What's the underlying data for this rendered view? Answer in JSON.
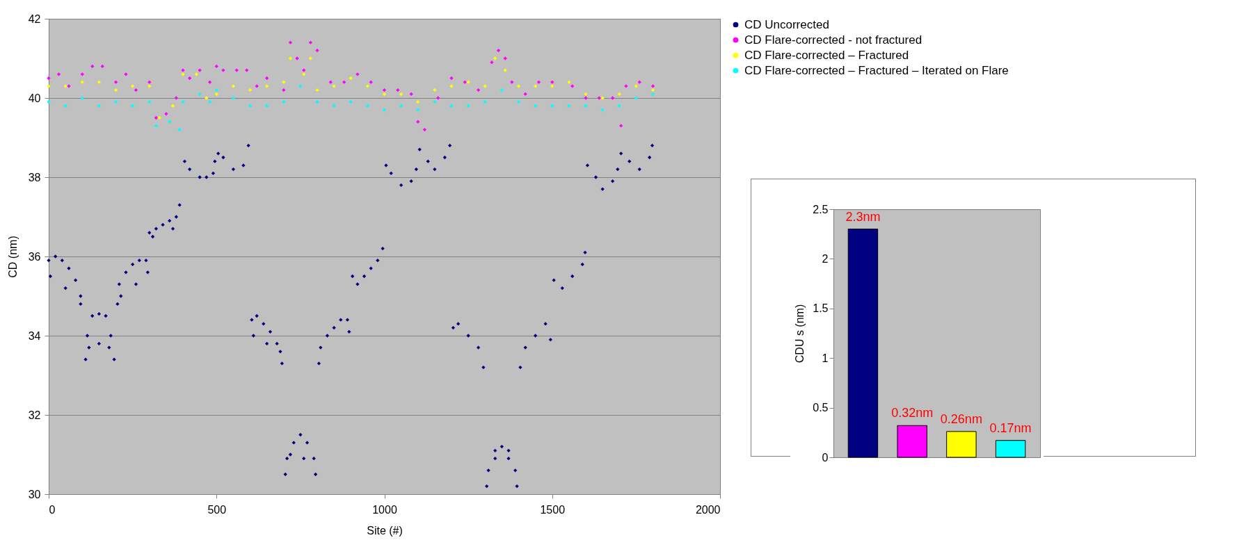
{
  "chart_data": [
    {
      "type": "scatter",
      "xlabel": "Site (#)",
      "ylabel": "CD (nm)",
      "xlim": [
        0,
        2000
      ],
      "xticks": [
        0,
        500,
        1000,
        1500,
        2000
      ],
      "ylim": [
        30,
        42
      ],
      "yticks": [
        30,
        32,
        34,
        36,
        38,
        40,
        42
      ],
      "grid": "y",
      "legend": "top right",
      "marker": "diamond",
      "series": [
        {
          "name": "CD Uncorrected",
          "color": "#000080",
          "x": [
            0,
            20,
            40,
            60,
            80,
            95,
            5,
            50,
            95,
            110,
            115,
            130,
            150,
            170,
            185,
            195,
            120,
            150,
            180,
            205,
            210,
            230,
            250,
            270,
            290,
            295,
            215,
            260,
            300,
            320,
            340,
            360,
            380,
            390,
            310,
            370,
            405,
            420,
            450,
            470,
            490,
            495,
            505,
            520,
            550,
            580,
            595,
            605,
            620,
            640,
            660,
            680,
            695,
            610,
            650,
            690,
            705,
            710,
            730,
            750,
            770,
            790,
            795,
            720,
            760,
            805,
            810,
            830,
            850,
            870,
            890,
            895,
            905,
            920,
            940,
            960,
            980,
            995,
            1005,
            1020,
            1050,
            1080,
            1095,
            1105,
            1130,
            1150,
            1180,
            1195,
            1205,
            1220,
            1250,
            1280,
            1295,
            1305,
            1310,
            1330,
            1350,
            1370,
            1390,
            1395,
            1330,
            1370,
            1405,
            1420,
            1450,
            1480,
            1495,
            1505,
            1530,
            1560,
            1590,
            1598,
            1605,
            1630,
            1650,
            1680,
            1695,
            1705,
            1730,
            1760,
            1790,
            1798
          ],
          "values": [
            35.9,
            36.0,
            35.9,
            35.7,
            35.4,
            35.0,
            35.5,
            35.2,
            34.8,
            33.4,
            34.0,
            34.5,
            34.55,
            34.5,
            34.0,
            33.4,
            33.7,
            33.8,
            33.7,
            34.8,
            35.3,
            35.6,
            35.8,
            35.9,
            35.9,
            35.6,
            35.0,
            35.3,
            36.6,
            36.7,
            36.8,
            36.9,
            37.0,
            37.3,
            36.5,
            36.7,
            38.4,
            38.2,
            38.0,
            38.0,
            38.1,
            38.4,
            38.6,
            38.5,
            38.2,
            38.3,
            38.8,
            34.4,
            34.5,
            34.3,
            34.1,
            33.8,
            33.3,
            34.0,
            33.8,
            33.6,
            30.5,
            30.9,
            31.3,
            31.5,
            31.3,
            30.9,
            30.5,
            31.0,
            30.9,
            33.3,
            33.7,
            34.0,
            34.2,
            34.4,
            34.4,
            34.1,
            35.5,
            35.3,
            35.5,
            35.7,
            35.9,
            36.2,
            38.3,
            38.1,
            37.8,
            37.9,
            38.2,
            38.7,
            38.4,
            38.2,
            38.5,
            38.8,
            34.2,
            34.3,
            34.0,
            33.7,
            33.2,
            30.2,
            30.6,
            31.1,
            31.2,
            31.1,
            30.6,
            30.2,
            30.9,
            30.9,
            33.2,
            33.7,
            34.0,
            34.3,
            33.9,
            35.4,
            35.2,
            35.5,
            35.8,
            36.1,
            38.3,
            38.0,
            37.7,
            37.9,
            38.2,
            38.6,
            38.4,
            38.2,
            38.5,
            38.8
          ]
        },
        {
          "name": "CD Flare-corrected - not fractured",
          "color": "#ff00ff",
          "x": [
            0,
            30,
            60,
            100,
            130,
            160,
            200,
            230,
            260,
            300,
            320,
            350,
            380,
            400,
            420,
            450,
            480,
            500,
            520,
            560,
            590,
            620,
            650,
            700,
            720,
            740,
            760,
            780,
            800,
            840,
            880,
            920,
            960,
            1000,
            1040,
            1080,
            1100,
            1120,
            1160,
            1200,
            1240,
            1280,
            1320,
            1340,
            1360,
            1380,
            1420,
            1460,
            1500,
            1560,
            1600,
            1640,
            1680,
            1705,
            1720,
            1760,
            1800
          ],
          "values": [
            40.5,
            40.6,
            40.3,
            40.6,
            40.8,
            40.8,
            40.4,
            40.6,
            40.2,
            40.4,
            39.5,
            39.6,
            40.0,
            40.7,
            40.5,
            40.7,
            40.4,
            40.8,
            40.7,
            40.7,
            40.7,
            40.3,
            40.5,
            40.2,
            41.4,
            41.0,
            40.7,
            41.4,
            41.2,
            40.4,
            40.4,
            40.6,
            40.4,
            40.2,
            40.2,
            40.1,
            39.4,
            39.2,
            40.0,
            40.5,
            40.4,
            40.2,
            40.9,
            41.2,
            41.0,
            40.4,
            40.1,
            40.4,
            40.4,
            40.3,
            40.0,
            40.0,
            40.0,
            39.3,
            40.3,
            40.4,
            40.3
          ]
        },
        {
          "name": "CD Flare-corrected – Fractured",
          "color": "#ffff00",
          "x": [
            0,
            50,
            100,
            150,
            200,
            250,
            300,
            330,
            370,
            400,
            440,
            470,
            500,
            550,
            600,
            650,
            700,
            720,
            760,
            780,
            800,
            850,
            900,
            950,
            1000,
            1050,
            1100,
            1150,
            1200,
            1250,
            1300,
            1330,
            1360,
            1400,
            1450,
            1500,
            1550,
            1600,
            1650,
            1700,
            1750,
            1800
          ],
          "values": [
            40.3,
            40.3,
            40.4,
            40.4,
            40.2,
            40.3,
            40.3,
            39.5,
            39.8,
            40.6,
            40.6,
            40.0,
            40.1,
            40.3,
            40.2,
            40.3,
            40.4,
            41.0,
            40.6,
            41.0,
            40.2,
            40.3,
            40.5,
            40.3,
            40.1,
            40.1,
            39.9,
            40.2,
            40.3,
            40.4,
            40.3,
            41.0,
            40.7,
            40.3,
            40.3,
            40.3,
            40.4,
            40.1,
            40.0,
            40.1,
            40.3,
            40.2
          ]
        },
        {
          "name": "CD Flare-corrected – Fractured – Iterated on Flare",
          "color": "#00ffff",
          "x": [
            0,
            50,
            100,
            150,
            200,
            250,
            300,
            320,
            360,
            390,
            400,
            450,
            480,
            500,
            550,
            600,
            650,
            700,
            750,
            800,
            850,
            900,
            950,
            1000,
            1050,
            1100,
            1150,
            1200,
            1250,
            1300,
            1350,
            1400,
            1450,
            1500,
            1550,
            1600,
            1650,
            1700,
            1750,
            1800
          ],
          "values": [
            39.9,
            39.8,
            40.0,
            39.8,
            39.9,
            39.8,
            39.9,
            39.3,
            39.4,
            39.2,
            39.9,
            40.1,
            39.9,
            40.2,
            40.0,
            39.8,
            39.8,
            39.9,
            40.3,
            39.9,
            39.8,
            39.9,
            39.8,
            39.7,
            39.8,
            39.7,
            39.9,
            39.8,
            39.8,
            39.9,
            40.2,
            39.9,
            39.8,
            39.8,
            39.8,
            39.8,
            39.7,
            39.8,
            40.0,
            40.1
          ]
        }
      ]
    },
    {
      "type": "bar",
      "ylabel": "CDU s (nm)",
      "categories": [
        null,
        null,
        null,
        null
      ],
      "values": [
        2.3,
        0.32,
        0.26,
        0.17
      ],
      "colors": [
        "#000080",
        "#ff00ff",
        "#ffff00",
        "#00ffff"
      ],
      "value_labels": [
        "2.3nm",
        "0.32nm",
        "0.26nm",
        "0.17nm"
      ],
      "ylim": [
        0,
        2.5
      ],
      "yticks": [
        0,
        0.5,
        1,
        1.5,
        2,
        2.5
      ]
    }
  ]
}
